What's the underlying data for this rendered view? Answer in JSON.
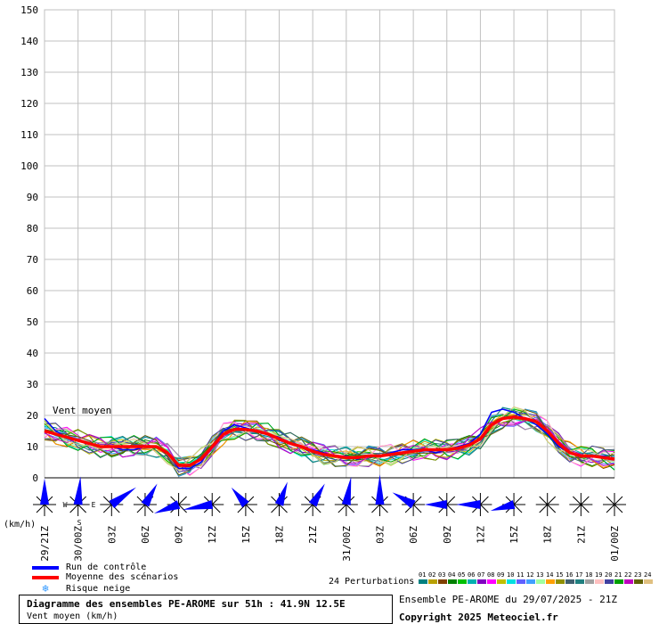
{
  "chart_data": {
    "type": "line",
    "series_label": "Vent moyen",
    "ylim": [
      0,
      150
    ],
    "y_ticks": [
      0,
      10,
      20,
      30,
      40,
      50,
      60,
      70,
      80,
      90,
      100,
      110,
      120,
      130,
      140,
      150
    ],
    "y_unit": "(km/h)",
    "x_hours": [
      0,
      51
    ],
    "x_tick_labels": [
      {
        "h": 0,
        "label": "29/21Z"
      },
      {
        "h": 3,
        "label": "30/00Z"
      },
      {
        "h": 6,
        "label": "03Z"
      },
      {
        "h": 9,
        "label": "06Z"
      },
      {
        "h": 12,
        "label": "09Z"
      },
      {
        "h": 15,
        "label": "12Z"
      },
      {
        "h": 18,
        "label": "15Z"
      },
      {
        "h": 21,
        "label": "18Z"
      },
      {
        "h": 24,
        "label": "21Z"
      },
      {
        "h": 27,
        "label": "31/00Z"
      },
      {
        "h": 30,
        "label": "03Z"
      },
      {
        "h": 33,
        "label": "06Z"
      },
      {
        "h": 36,
        "label": "09Z"
      },
      {
        "h": 39,
        "label": "12Z"
      },
      {
        "h": 42,
        "label": "15Z"
      },
      {
        "h": 45,
        "label": "18Z"
      },
      {
        "h": 48,
        "label": "21Z"
      },
      {
        "h": 51,
        "label": "01/00Z"
      }
    ],
    "grid": true,
    "series": [
      {
        "name": "Run de contrôle",
        "color": "#0000ff",
        "x": [
          0,
          1,
          2,
          3,
          4,
          5,
          6,
          7,
          8,
          9,
          10,
          11,
          12,
          13,
          14,
          15,
          16,
          17,
          18,
          19,
          20,
          21,
          22,
          23,
          24,
          25,
          26,
          27,
          28,
          29,
          30,
          31,
          32,
          33,
          34,
          35,
          36,
          37,
          38,
          39,
          40,
          41,
          42,
          43,
          44,
          45,
          46,
          47,
          48,
          49,
          50,
          51
        ],
        "values": [
          19,
          15,
          13,
          12,
          11,
          10,
          10,
          9,
          9,
          10,
          10,
          8,
          3,
          3,
          5,
          10,
          15,
          17,
          16,
          15,
          14,
          13,
          11,
          10,
          9,
          8,
          7,
          7,
          6,
          7,
          7,
          8,
          9,
          9,
          9,
          8,
          9,
          10,
          11,
          14,
          21,
          22,
          21,
          19,
          17,
          14,
          10,
          8,
          7,
          7,
          7,
          6
        ]
      },
      {
        "name": "Moyenne des scénarios",
        "color": "#ff0000",
        "x": [
          0,
          1,
          2,
          3,
          4,
          5,
          6,
          7,
          8,
          9,
          10,
          11,
          12,
          13,
          14,
          15,
          16,
          17,
          18,
          19,
          20,
          21,
          22,
          23,
          24,
          25,
          26,
          27,
          28,
          29,
          30,
          31,
          32,
          33,
          34,
          35,
          36,
          37,
          38,
          39,
          40,
          41,
          42,
          43,
          44,
          45,
          46,
          47,
          48,
          49,
          50,
          51
        ],
        "values": [
          15,
          14,
          13,
          12,
          11,
          10,
          10,
          10,
          10,
          10,
          10,
          8,
          4,
          4,
          6,
          10,
          14,
          15.5,
          15.5,
          15,
          14,
          12.5,
          11,
          10,
          8.5,
          7.5,
          7,
          6.5,
          6.5,
          7,
          7,
          7.5,
          8,
          8.5,
          9,
          9,
          9,
          9.5,
          10.5,
          12.5,
          17,
          19,
          19.5,
          19,
          18,
          15,
          11,
          8,
          7,
          7,
          6.5,
          6
        ]
      }
    ],
    "perturbations_label": "24 Perturbations",
    "perturbations": [
      {
        "id": "01",
        "color": "#008080"
      },
      {
        "id": "02",
        "color": "#b8a000"
      },
      {
        "id": "03",
        "color": "#804000"
      },
      {
        "id": "04",
        "color": "#008000"
      },
      {
        "id": "05",
        "color": "#00c000"
      },
      {
        "id": "06",
        "color": "#00b0b0"
      },
      {
        "id": "07",
        "color": "#8000c0"
      },
      {
        "id": "08",
        "color": "#ff00ff"
      },
      {
        "id": "09",
        "color": "#c0c000"
      },
      {
        "id": "10",
        "color": "#00e0e0"
      },
      {
        "id": "11",
        "color": "#6060ff"
      },
      {
        "id": "12",
        "color": "#40a0ff"
      },
      {
        "id": "13",
        "color": "#a0ffa0"
      },
      {
        "id": "14",
        "color": "#ffa000"
      },
      {
        "id": "15",
        "color": "#909000"
      },
      {
        "id": "16",
        "color": "#406070"
      },
      {
        "id": "17",
        "color": "#208080"
      },
      {
        "id": "18",
        "color": "#a0a0a0"
      },
      {
        "id": "19",
        "color": "#ffc0c0"
      },
      {
        "id": "20",
        "color": "#4040a0"
      },
      {
        "id": "21",
        "color": "#00a000"
      },
      {
        "id": "22",
        "color": "#c000c0"
      },
      {
        "id": "23",
        "color": "#606000"
      },
      {
        "id": "24",
        "color": "#e0c080"
      }
    ],
    "wind_dirs": {
      "n": "N",
      "w": "W",
      "e": "E",
      "s": "S"
    },
    "wind_roses": [
      {
        "h": 0,
        "deg": 0,
        "len": 0.7
      },
      {
        "h": 3,
        "deg": 5,
        "len": 0.8
      },
      {
        "h": 6,
        "deg": 55,
        "len": 0.9
      },
      {
        "h": 9,
        "deg": 30,
        "len": 0.6
      },
      {
        "h": 12,
        "deg": 250,
        "len": 0.7
      },
      {
        "h": 15,
        "deg": 260,
        "len": 0.9
      },
      {
        "h": 18,
        "deg": 320,
        "len": 0.5
      },
      {
        "h": 21,
        "deg": 20,
        "len": 0.6
      },
      {
        "h": 24,
        "deg": 30,
        "len": 0.6
      },
      {
        "h": 27,
        "deg": 10,
        "len": 0.8
      },
      {
        "h": 30,
        "deg": 0,
        "len": 0.9
      },
      {
        "h": 33,
        "deg": 300,
        "len": 0.6
      },
      {
        "h": 36,
        "deg": 270,
        "len": 0.5
      },
      {
        "h": 39,
        "deg": 270,
        "len": 0.6
      },
      {
        "h": 42,
        "deg": 255,
        "len": 0.6
      },
      {
        "h": 45,
        "deg": 270,
        "len": 0.0
      },
      {
        "h": 48,
        "deg": 270,
        "len": 0.0
      },
      {
        "h": 51,
        "deg": 270,
        "len": 0.0
      }
    ]
  },
  "legend": {
    "control": "Run de contrôle",
    "mean": "Moyenne des scénarios",
    "snow": "Risque neige"
  },
  "footer": {
    "title": "Diagramme des ensembles PE-AROME sur 51h : 41.9N 12.5E",
    "subtitle": "Vent moyen (km/h)",
    "ensemble": "Ensemble PE-AROME du 29/07/2025 - 21Z",
    "copyright": "Copyright 2025 Meteociel.fr"
  },
  "colors": {
    "control": "#0000ff",
    "mean": "#ff0000",
    "grid": "#c0c0c0",
    "snow": "#3399ff"
  }
}
